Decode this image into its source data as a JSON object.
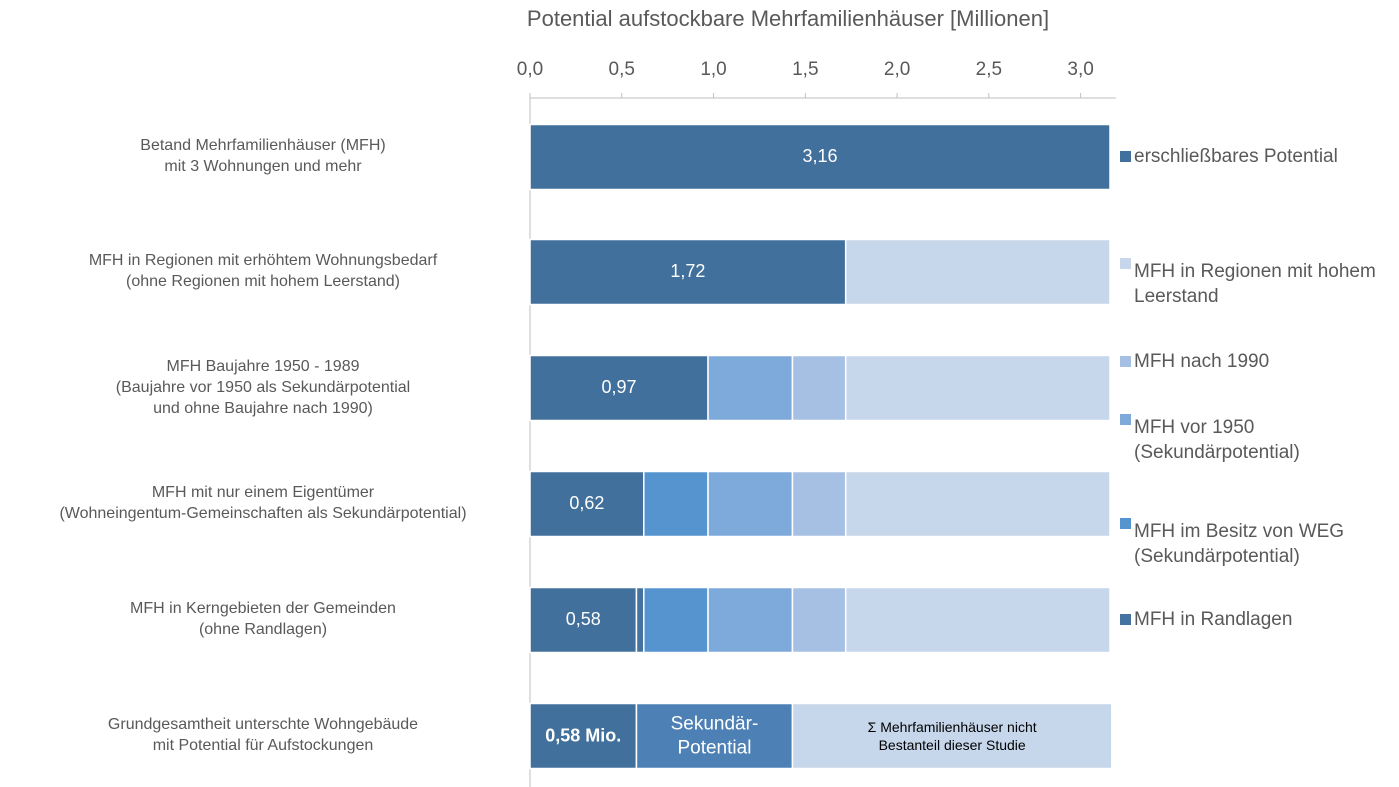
{
  "chart_data": {
    "type": "stacked-barh",
    "title": "Potential aufstockbare Mehrfamilienhäuser [Millionen]",
    "categories": [
      "Betand Mehrfamilienhäuser (MFH)\nmit 3 Wohnungen und mehr",
      "MFH in Regionen mit erhöhtem Wohnungsbedarf\n(ohne Regionen mit hohem Leerstand)",
      "MFH Baujahre 1950 - 1989\n(Baujahre vor 1950 als Sekundärpotential\nund ohne Baujahre nach 1990)",
      "MFH mit nur einem Eigentümer\n(Wohneingentum-Gemeinschaften als Sekundärpotential)",
      "MFH in Kerngebieten der Gemeinden\n(ohne Randlagen)"
    ],
    "series": [
      {
        "name": "erschließbares Potential",
        "color": "#41709c",
        "values": [
          3.16,
          1.72,
          0.97,
          0.62,
          0.58
        ],
        "value_labels": [
          "3,16",
          "1,72",
          "0,97",
          "0,62",
          "0,58"
        ]
      },
      {
        "name": "MFH in Regionen mit hohem Leerstand",
        "color": "#c6d6eb",
        "values": [
          null,
          1.44,
          1.44,
          1.44,
          1.44
        ]
      },
      {
        "name": "MFH nach 1990",
        "color": "#a6c0e3",
        "values": [
          null,
          null,
          0.29,
          0.29,
          0.29
        ]
      },
      {
        "name": "MFH vor 1950\n(Sekundärpotential)",
        "color": "#7eaadb",
        "values": [
          null,
          null,
          0.46,
          0.46,
          0.46
        ]
      },
      {
        "name": "MFH im Besitz von WEG\n(Sekundärpotential)",
        "color": "#5694d0",
        "values": [
          null,
          null,
          null,
          0.35,
          0.35
        ]
      },
      {
        "name": "MFH in Randlagen",
        "color": "#44739f",
        "values": [
          null,
          null,
          null,
          null,
          0.04
        ]
      }
    ],
    "summary": {
      "category": "Grundgesamtheit unterschte Wohngebäude\nmit Potential für Aufstockungen",
      "values": [
        0.58,
        0.85,
        1.74
      ],
      "segment_labels": [
        "0,58 Mio.",
        "Sekundär-\nPotential",
        "Σ Mehrfamilienhäuser nicht\nBestanteil dieser Studie"
      ],
      "colors": [
        "#41709c",
        "#4d80b5",
        "#c6d6eb"
      ]
    },
    "xlim": [
      0,
      3.16
    ],
    "xticks": [
      {
        "value": 0,
        "label": "0,0"
      },
      {
        "value": 0.5,
        "label": "0,5"
      },
      {
        "value": 1,
        "label": "1,0"
      },
      {
        "value": 1.5,
        "label": "1,5"
      },
      {
        "value": 2,
        "label": "2,0"
      },
      {
        "value": 2.5,
        "label": "2,5"
      },
      {
        "value": 3,
        "label": "3,0"
      }
    ],
    "legend": "right"
  }
}
